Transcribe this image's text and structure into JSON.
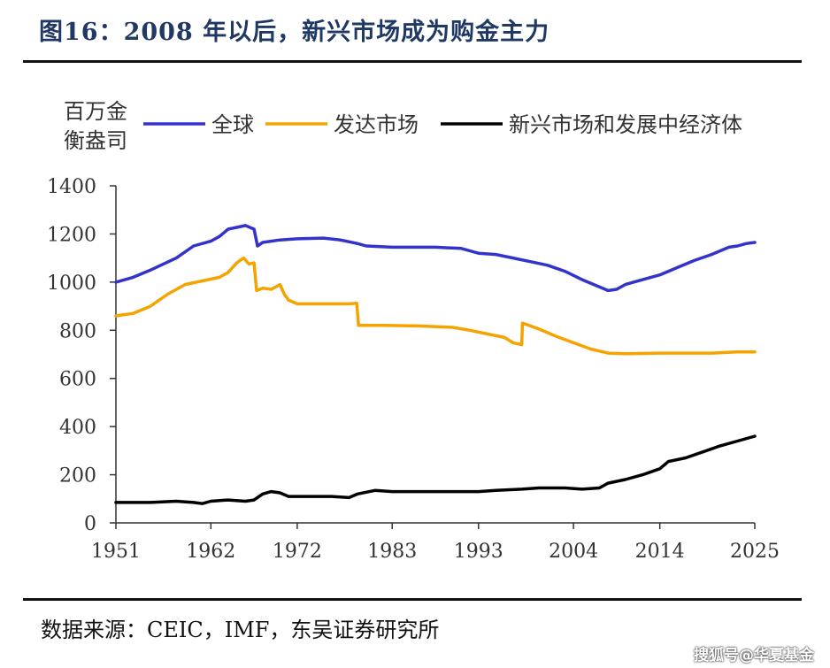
{
  "title": "图16：2008 年以后，新兴市场成为购金主力",
  "source": "数据来源：CEIC，IMF，东吴证券研究所",
  "watermark": "搜狐号@华夏基金",
  "colors": {
    "title": "#1f3864",
    "global": "#3333cc",
    "developed": "#f5a300",
    "emerging": "#000000",
    "axis": "#333333",
    "text": "#333333"
  },
  "chart_data": {
    "type": "line",
    "unit_label": [
      "百万金",
      "衡盎司"
    ],
    "x_ticks": [
      1951,
      1962,
      1972,
      1983,
      1993,
      2004,
      2014,
      2025
    ],
    "xlim": [
      1951,
      2025
    ],
    "y_ticks": [
      0,
      200,
      400,
      600,
      800,
      1000,
      1200,
      1400
    ],
    "ylim": [
      0,
      1400
    ],
    "grid": false,
    "legend_position": "top",
    "series": [
      {
        "name": "全球",
        "color": "#3333cc",
        "points": [
          [
            1951,
            1000
          ],
          [
            1953,
            1020
          ],
          [
            1955,
            1050
          ],
          [
            1958,
            1100
          ],
          [
            1960,
            1150
          ],
          [
            1962,
            1170
          ],
          [
            1963,
            1190
          ],
          [
            1964,
            1220
          ],
          [
            1966,
            1235
          ],
          [
            1967,
            1220
          ],
          [
            1967.4,
            1150
          ],
          [
            1968,
            1165
          ],
          [
            1970,
            1175
          ],
          [
            1972,
            1180
          ],
          [
            1975,
            1183
          ],
          [
            1977,
            1175
          ],
          [
            1979,
            1160
          ],
          [
            1980,
            1150
          ],
          [
            1983,
            1145
          ],
          [
            1985,
            1145
          ],
          [
            1988,
            1145
          ],
          [
            1991,
            1140
          ],
          [
            1992,
            1130
          ],
          [
            1993,
            1120
          ],
          [
            1995,
            1115
          ],
          [
            1997,
            1100
          ],
          [
            1999,
            1085
          ],
          [
            2001,
            1070
          ],
          [
            2003,
            1045
          ],
          [
            2005,
            1010
          ],
          [
            2007,
            980
          ],
          [
            2008,
            965
          ],
          [
            2009,
            970
          ],
          [
            2010,
            990
          ],
          [
            2012,
            1010
          ],
          [
            2014,
            1030
          ],
          [
            2016,
            1060
          ],
          [
            2018,
            1090
          ],
          [
            2020,
            1115
          ],
          [
            2021,
            1130
          ],
          [
            2022,
            1145
          ],
          [
            2023,
            1150
          ],
          [
            2024,
            1160
          ],
          [
            2025,
            1165
          ]
        ]
      },
      {
        "name": "发达市场",
        "color": "#f5a300",
        "points": [
          [
            1951,
            860
          ],
          [
            1953,
            870
          ],
          [
            1955,
            900
          ],
          [
            1957,
            950
          ],
          [
            1959,
            990
          ],
          [
            1961,
            1005
          ],
          [
            1963,
            1020
          ],
          [
            1964,
            1040
          ],
          [
            1965,
            1080
          ],
          [
            1965.8,
            1100
          ],
          [
            1966.4,
            1075
          ],
          [
            1967,
            1080
          ],
          [
            1967.3,
            965
          ],
          [
            1968,
            975
          ],
          [
            1969,
            970
          ],
          [
            1970,
            990
          ],
          [
            1970.5,
            950
          ],
          [
            1971,
            925
          ],
          [
            1972,
            910
          ],
          [
            1975,
            910
          ],
          [
            1978,
            910
          ],
          [
            1978.9,
            912
          ],
          [
            1979.1,
            820
          ],
          [
            1982,
            820
          ],
          [
            1986,
            818
          ],
          [
            1990,
            812
          ],
          [
            1992,
            800
          ],
          [
            1994,
            785
          ],
          [
            1996,
            770
          ],
          [
            1997,
            748
          ],
          [
            1998,
            740
          ],
          [
            1998.1,
            830
          ],
          [
            2000,
            805
          ],
          [
            2002,
            775
          ],
          [
            2004,
            748
          ],
          [
            2006,
            722
          ],
          [
            2008,
            705
          ],
          [
            2010,
            703
          ],
          [
            2014,
            705
          ],
          [
            2018,
            705
          ],
          [
            2020,
            705
          ],
          [
            2023,
            710
          ],
          [
            2025,
            710
          ]
        ]
      },
      {
        "name": "新兴市场和发展中经济体",
        "color": "#000000",
        "points": [
          [
            1951,
            85
          ],
          [
            1955,
            85
          ],
          [
            1958,
            90
          ],
          [
            1960,
            85
          ],
          [
            1961,
            80
          ],
          [
            1962,
            90
          ],
          [
            1964,
            95
          ],
          [
            1966,
            90
          ],
          [
            1967,
            95
          ],
          [
            1968,
            120
          ],
          [
            1969,
            130
          ],
          [
            1970,
            125
          ],
          [
            1971,
            110
          ],
          [
            1973,
            110
          ],
          [
            1976,
            110
          ],
          [
            1978,
            105
          ],
          [
            1979,
            120
          ],
          [
            1981,
            135
          ],
          [
            1983,
            130
          ],
          [
            1988,
            130
          ],
          [
            1993,
            130
          ],
          [
            1995,
            135
          ],
          [
            1998,
            140
          ],
          [
            2000,
            145
          ],
          [
            2003,
            145
          ],
          [
            2005,
            140
          ],
          [
            2007,
            145
          ],
          [
            2008,
            165
          ],
          [
            2010,
            180
          ],
          [
            2012,
            200
          ],
          [
            2014,
            225
          ],
          [
            2015,
            255
          ],
          [
            2017,
            270
          ],
          [
            2019,
            295
          ],
          [
            2021,
            320
          ],
          [
            2023,
            340
          ],
          [
            2025,
            360
          ]
        ]
      }
    ]
  }
}
